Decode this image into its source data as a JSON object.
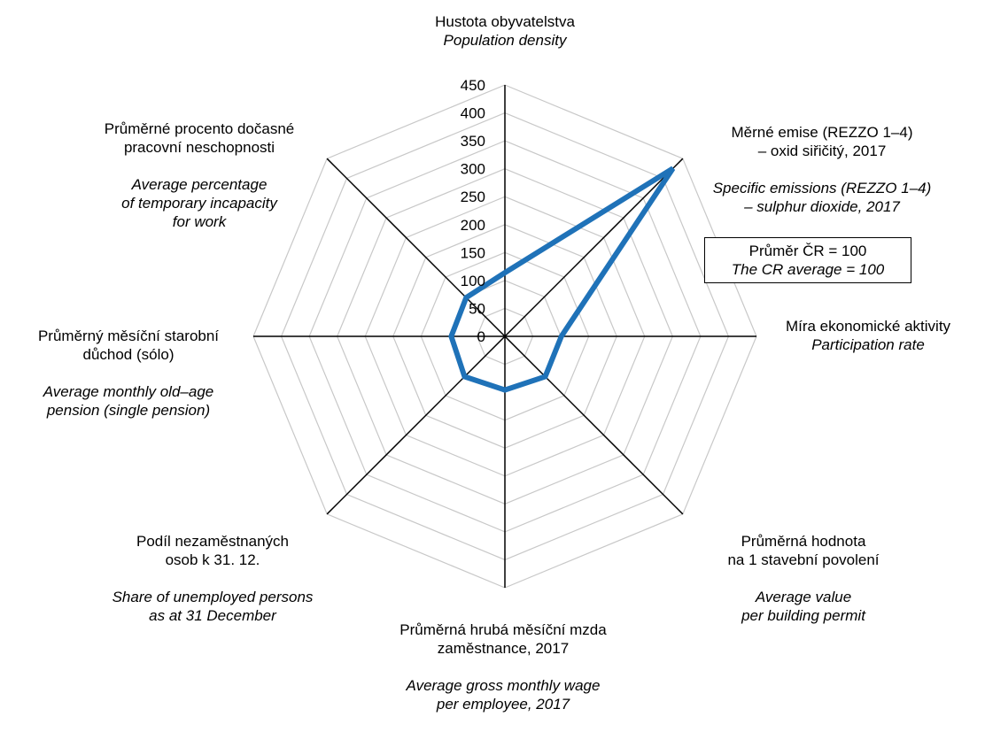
{
  "chart_data": {
    "type": "radar",
    "axes": [
      {
        "cz": "Hustota obyvatelstva",
        "en": "Population density"
      },
      {
        "cz": "Měrné emise (REZZO 1–4)\n– oxid siřičitý, 2017",
        "en": "Specific emissions (REZZO 1–4)\n– sulphur dioxide, 2017"
      },
      {
        "cz": "Míra ekonomické aktivity",
        "en": "Participation rate"
      },
      {
        "cz": "Průměrná hodnota\nna 1 stavební povolení",
        "en": "Average value\nper building permit"
      },
      {
        "cz": "Průměrná hrubá měsíční mzda\nzaměstnance, 2017",
        "en": "Average gross monthly wage\nper employee, 2017"
      },
      {
        "cz": "Podíl nezaměstnaných\nosob k 31. 12.",
        "en": "Share of unemployed persons\nas at 31 December"
      },
      {
        "cz": "Průměrný měsíční starobní\ndůchod (sólo)",
        "en": "Average monthly old–age\npension (single pension)"
      },
      {
        "cz": "Průměrné procento dočasné\npracovní neschopnosti",
        "en": "Average percentage\nof temporary incapacity\nfor work"
      }
    ],
    "series": [
      {
        "values": [
          114,
          425,
          101,
          102,
          96,
          102,
          96,
          98
        ],
        "color": "#1f72b8"
      }
    ],
    "ticks": [
      "0",
      "50",
      "100",
      "150",
      "200",
      "250",
      "300",
      "350",
      "400",
      "450"
    ],
    "rmax": 450,
    "grid": true
  },
  "note": {
    "cz": "Průměr ČR = 100",
    "en": "The CR average = 100"
  }
}
